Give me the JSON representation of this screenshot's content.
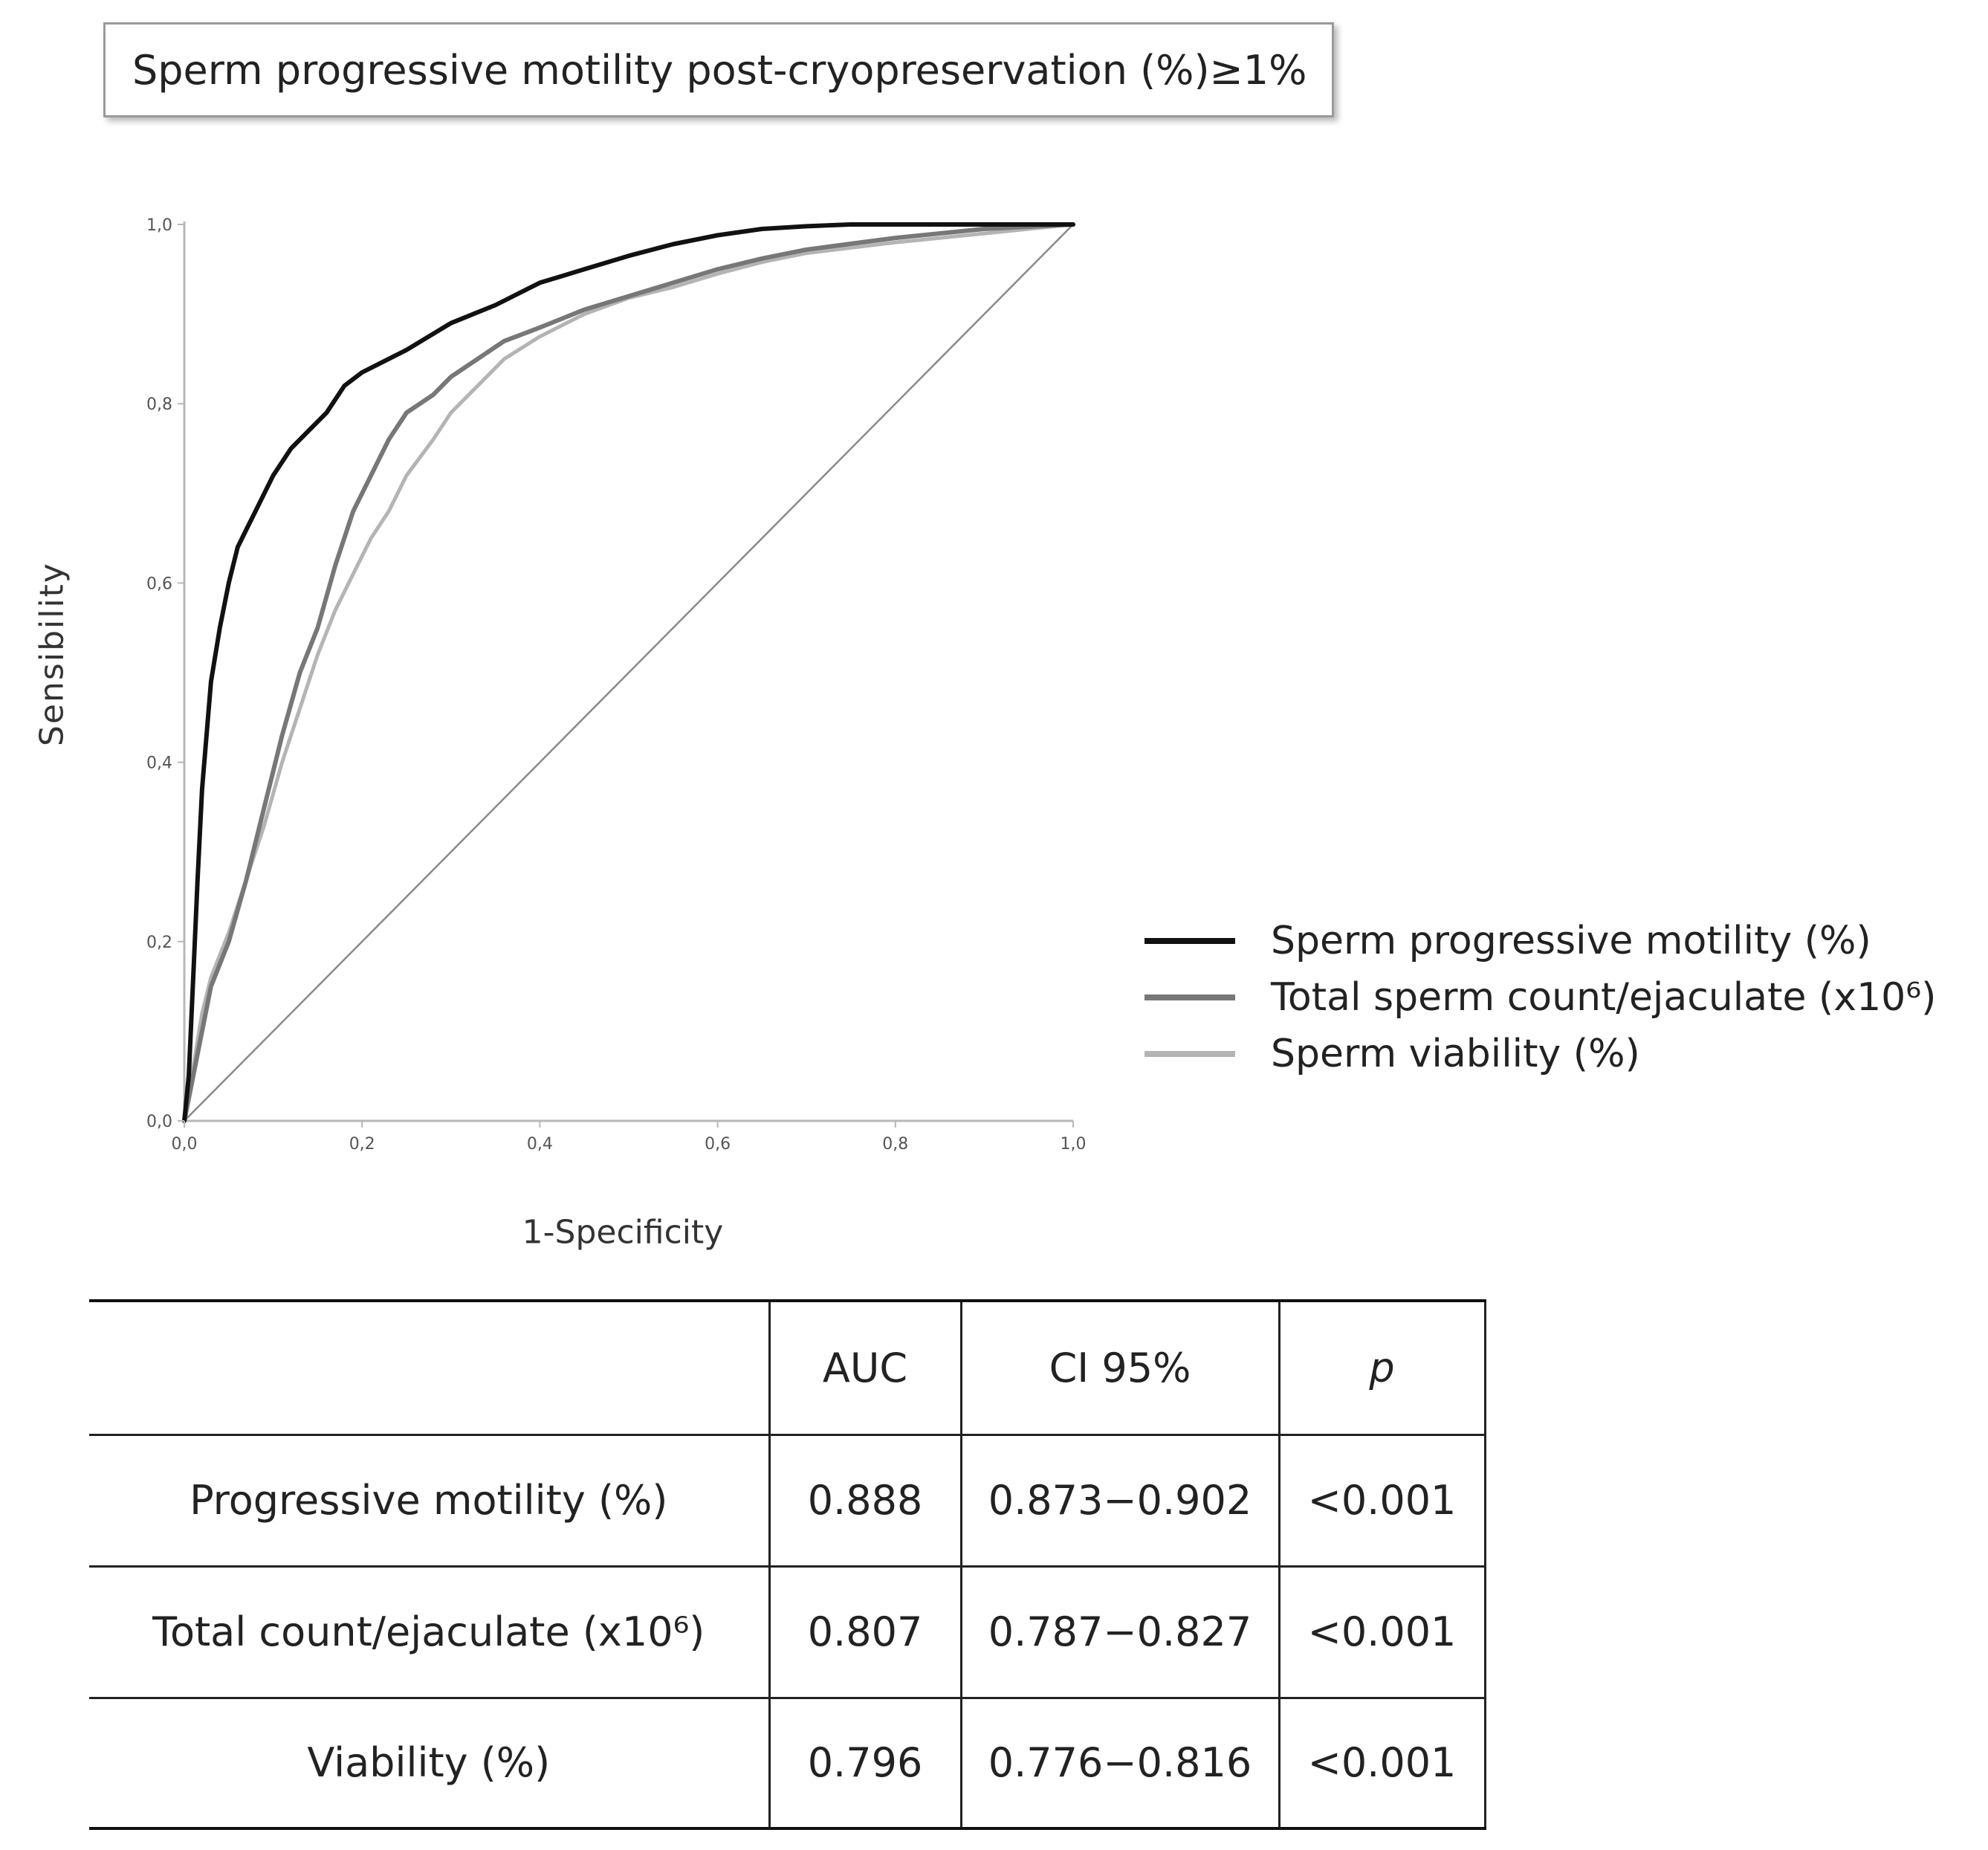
{
  "header": {
    "title": "Sperm progressive motility post-cryopreservation (%)≥1%"
  },
  "chart_data": {
    "type": "line",
    "title": "Sperm progressive motility post-cryopreservation (%)≥1%",
    "xlabel": "1-Specificity",
    "ylabel": "Sensibility",
    "xlim": [
      0,
      1
    ],
    "ylim": [
      0,
      1
    ],
    "xticks": [
      "0,0",
      "0,2",
      "0,4",
      "0,6",
      "0,8",
      "1,0"
    ],
    "yticks": [
      "0,0",
      "0,2",
      "0,4",
      "0,6",
      "0,8",
      "1,0"
    ],
    "legend_position": "right",
    "reference_line": {
      "x": [
        0,
        1
      ],
      "y": [
        0,
        1
      ]
    },
    "series": [
      {
        "name": "Sperm progressive motility (%)",
        "color": "#111111",
        "x": [
          0,
          0.005,
          0.01,
          0.015,
          0.02,
          0.025,
          0.03,
          0.04,
          0.05,
          0.06,
          0.07,
          0.08,
          0.1,
          0.12,
          0.14,
          0.16,
          0.18,
          0.2,
          0.22,
          0.25,
          0.3,
          0.35,
          0.4,
          0.45,
          0.5,
          0.55,
          0.6,
          0.65,
          0.7,
          0.75,
          0.8,
          0.85,
          0.9,
          1.0
        ],
        "y": [
          0,
          0.05,
          0.16,
          0.27,
          0.37,
          0.43,
          0.49,
          0.55,
          0.6,
          0.64,
          0.66,
          0.68,
          0.72,
          0.75,
          0.77,
          0.79,
          0.82,
          0.835,
          0.845,
          0.86,
          0.89,
          0.91,
          0.935,
          0.95,
          0.965,
          0.978,
          0.988,
          0.995,
          0.998,
          1.0,
          1.0,
          1.0,
          1.0,
          1.0
        ]
      },
      {
        "name": "Total sperm count/ejaculate (x10⁶)",
        "color": "#777777",
        "x": [
          0,
          0.01,
          0.02,
          0.03,
          0.05,
          0.07,
          0.09,
          0.11,
          0.13,
          0.15,
          0.17,
          0.19,
          0.21,
          0.23,
          0.25,
          0.28,
          0.3,
          0.33,
          0.36,
          0.4,
          0.45,
          0.5,
          0.55,
          0.6,
          0.65,
          0.7,
          0.8,
          0.9,
          1.0
        ],
        "y": [
          0,
          0.05,
          0.1,
          0.15,
          0.2,
          0.27,
          0.35,
          0.43,
          0.5,
          0.55,
          0.62,
          0.68,
          0.72,
          0.76,
          0.79,
          0.81,
          0.83,
          0.85,
          0.87,
          0.885,
          0.905,
          0.92,
          0.935,
          0.95,
          0.962,
          0.972,
          0.985,
          0.995,
          1.0
        ]
      },
      {
        "name": "Sperm viability (%)",
        "color": "#b4b4b4",
        "x": [
          0,
          0.01,
          0.02,
          0.03,
          0.05,
          0.07,
          0.09,
          0.11,
          0.13,
          0.15,
          0.17,
          0.19,
          0.21,
          0.23,
          0.25,
          0.28,
          0.3,
          0.33,
          0.36,
          0.4,
          0.45,
          0.5,
          0.55,
          0.6,
          0.65,
          0.7,
          0.8,
          0.9,
          1.0
        ],
        "y": [
          0,
          0.06,
          0.12,
          0.16,
          0.21,
          0.27,
          0.33,
          0.4,
          0.46,
          0.52,
          0.57,
          0.61,
          0.65,
          0.68,
          0.72,
          0.76,
          0.79,
          0.82,
          0.85,
          0.875,
          0.9,
          0.918,
          0.93,
          0.945,
          0.958,
          0.968,
          0.98,
          0.99,
          1.0
        ]
      }
    ]
  },
  "table": {
    "headers": [
      "",
      "AUC",
      "CI 95%",
      "p"
    ],
    "rows": [
      {
        "label": "Progressive motility (%)",
        "auc": "0.888",
        "ci": "0.873−0.902",
        "p": "<0.001"
      },
      {
        "label": "Total count/ejaculate (x10⁶)",
        "auc": "0.807",
        "ci": "0.787−0.827",
        "p": "<0.001"
      },
      {
        "label": "Viability (%)",
        "auc": "0.796",
        "ci": "0.776−0.816",
        "p": "<0.001"
      }
    ]
  }
}
